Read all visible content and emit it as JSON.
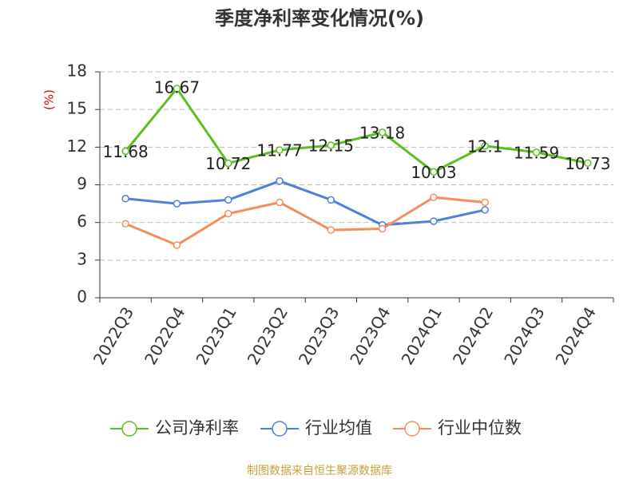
{
  "chart_data": {
    "type": "line",
    "title": "季度净利率变化情况(%)",
    "y_label": "(%)",
    "source": "制图数据来自恒生聚源数据库",
    "categories": [
      "2022Q3",
      "2022Q4",
      "2023Q1",
      "2023Q2",
      "2023Q3",
      "2023Q4",
      "2024Q1",
      "2024Q2",
      "2024Q3",
      "2024Q4"
    ],
    "series": [
      {
        "name": "公司净利率",
        "color": "#5cbf1f",
        "data_labels": true,
        "values": [
          11.68,
          16.67,
          10.72,
          11.77,
          12.15,
          13.18,
          10.03,
          12.1,
          11.59,
          10.73
        ]
      },
      {
        "name": "行业均值",
        "color": "#4e7fdc",
        "values": [
          7.9,
          7.5,
          7.8,
          9.3,
          7.8,
          5.8,
          6.1,
          7.0,
          null,
          null
        ]
      },
      {
        "name": "行业中位数",
        "color": "#f78d5c",
        "values": [
          5.9,
          4.2,
          6.7,
          7.6,
          5.4,
          5.5,
          8.0,
          7.6,
          null,
          null
        ]
      }
    ],
    "ylim": [
      0,
      18
    ],
    "yticks": [
      0,
      3,
      6,
      9,
      12,
      15,
      18
    ],
    "grid": true,
    "legend": "bottom"
  }
}
